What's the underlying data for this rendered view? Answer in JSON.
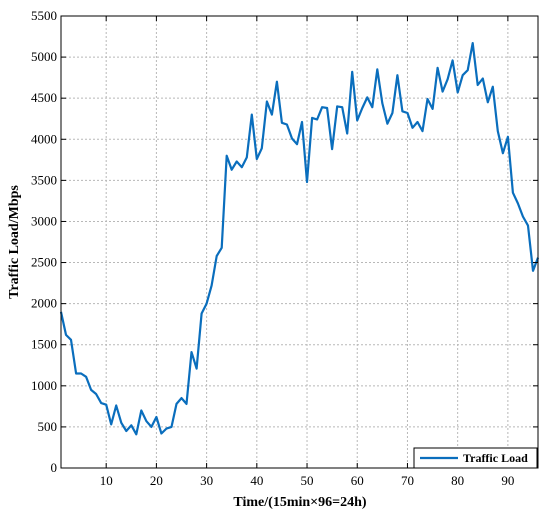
{
  "chart_data": {
    "type": "line",
    "title": "",
    "xlabel": "Time/(15min×96=24h)",
    "ylabel": "Traffic Load/Mbps",
    "xlim": [
      1,
      96
    ],
    "ylim": [
      0,
      5500
    ],
    "xticks": [
      10,
      20,
      30,
      40,
      50,
      60,
      70,
      80,
      90
    ],
    "yticks": [
      0,
      500,
      1000,
      1500,
      2000,
      2500,
      3000,
      3500,
      4000,
      4500,
      5000,
      5500
    ],
    "grid": true,
    "legend_position": "bottom-right",
    "color": "#0a6ebd",
    "series": [
      {
        "name": "Traffic Load",
        "x": [
          1,
          2,
          3,
          4,
          5,
          6,
          7,
          8,
          9,
          10,
          11,
          12,
          13,
          14,
          15,
          16,
          17,
          18,
          19,
          20,
          21,
          22,
          23,
          24,
          25,
          26,
          27,
          28,
          29,
          30,
          31,
          32,
          33,
          34,
          35,
          36,
          37,
          38,
          39,
          40,
          41,
          42,
          43,
          44,
          45,
          46,
          47,
          48,
          49,
          50,
          51,
          52,
          53,
          54,
          55,
          56,
          57,
          58,
          59,
          60,
          61,
          62,
          63,
          64,
          65,
          66,
          67,
          68,
          69,
          70,
          71,
          72,
          73,
          74,
          75,
          76,
          77,
          78,
          79,
          80,
          81,
          82,
          83,
          84,
          85,
          86,
          87,
          88,
          89,
          90,
          91,
          92,
          93,
          94,
          95,
          96
        ],
        "y": [
          1900,
          1620,
          1560,
          1150,
          1150,
          1110,
          950,
          900,
          790,
          770,
          530,
          760,
          550,
          450,
          520,
          410,
          700,
          570,
          500,
          620,
          420,
          480,
          500,
          780,
          850,
          780,
          1410,
          1210,
          1880,
          2000,
          2220,
          2580,
          2680,
          3800,
          3630,
          3730,
          3660,
          3780,
          4300,
          3760,
          3890,
          4460,
          4300,
          4700,
          4200,
          4180,
          4010,
          3940,
          4210,
          3480,
          4260,
          4240,
          4390,
          4380,
          3880,
          4400,
          4390,
          4070,
          4820,
          4230,
          4380,
          4510,
          4390,
          4850,
          4440,
          4190,
          4320,
          4780,
          4340,
          4320,
          4140,
          4210,
          4100,
          4490,
          4370,
          4870,
          4580,
          4730,
          4960,
          4570,
          4780,
          4840,
          5170,
          4660,
          4740,
          4450,
          4640,
          4100,
          3830,
          4030,
          3350,
          3220,
          3060,
          2950,
          2400,
          2560
        ]
      }
    ]
  }
}
